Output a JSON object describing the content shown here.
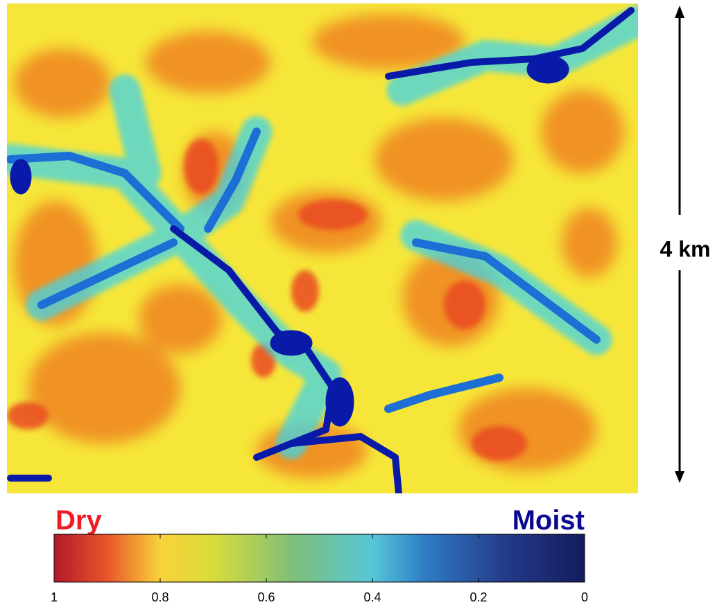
{
  "map": {
    "scale_bar": {
      "label": "4 km"
    }
  },
  "colorbar": {
    "low_label": "Dry",
    "high_label": "Moist",
    "lim": [
      1,
      0
    ],
    "ticks": [
      1,
      0.8,
      0.6,
      0.4,
      0.2,
      0
    ]
  }
}
